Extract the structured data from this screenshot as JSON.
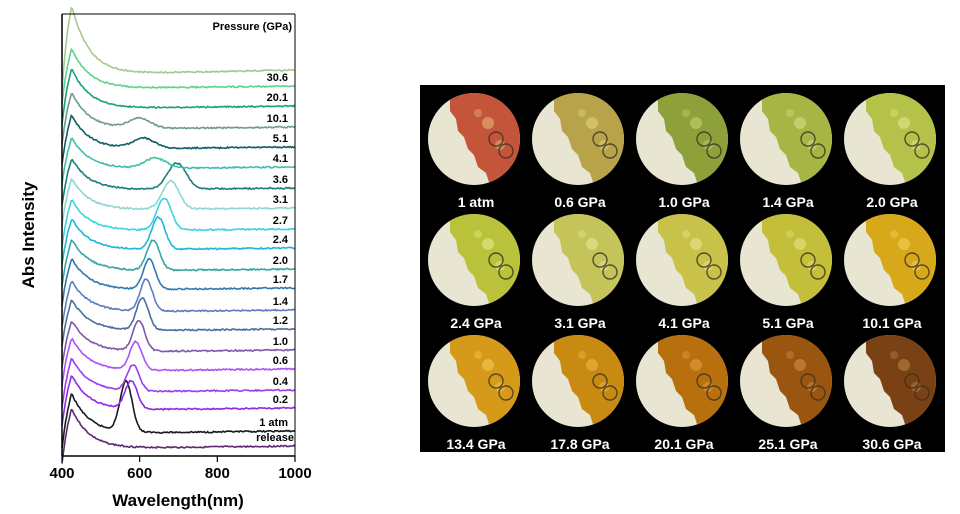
{
  "chart_data": {
    "type": "line",
    "xlabel": "Wavelength(nm)",
    "ylabel": "Abs Intensity",
    "legend_title": "Pressure (GPa)",
    "xlim": [
      400,
      1000
    ],
    "xticks": [
      400,
      600,
      800,
      1000
    ],
    "grid": false,
    "series": [
      {
        "name": "release",
        "color": "#5b2a6e",
        "baseline": 446,
        "peak": 0,
        "amp": 0,
        "width": 0,
        "edge": 70
      },
      {
        "name": "1 atm",
        "color": "#1a1a1a",
        "baseline": 431,
        "peak": 565,
        "amp": 50,
        "width": 22,
        "edge": 70
      },
      {
        "name": "0.2",
        "color": "#8c2be2",
        "baseline": 408,
        "peak": 578,
        "amp": 28,
        "width": 22,
        "edge": 62
      },
      {
        "name": "0.4",
        "color": "#9b3cf0",
        "baseline": 390,
        "peak": 583,
        "amp": 26,
        "width": 22,
        "edge": 60
      },
      {
        "name": "0.6",
        "color": "#a855f7",
        "baseline": 369,
        "peak": 590,
        "amp": 28,
        "width": 22,
        "edge": 58
      },
      {
        "name": "1.0",
        "color": "#7b59a8",
        "baseline": 350,
        "peak": 598,
        "amp": 30,
        "width": 22,
        "edge": 55
      },
      {
        "name": "1.2",
        "color": "#4a6f9c",
        "baseline": 329,
        "peak": 607,
        "amp": 32,
        "width": 22,
        "edge": 55
      },
      {
        "name": "1.4",
        "color": "#5b7ec0",
        "baseline": 310,
        "peak": 617,
        "amp": 32,
        "width": 22,
        "edge": 55
      },
      {
        "name": "1.7",
        "color": "#2f79b0",
        "baseline": 288,
        "peak": 625,
        "amp": 30,
        "width": 22,
        "edge": 55
      },
      {
        "name": "2.0",
        "color": "#35a6a6",
        "baseline": 269,
        "peak": 635,
        "amp": 30,
        "width": 23,
        "edge": 55
      },
      {
        "name": "2.4",
        "color": "#1fb7d9",
        "baseline": 248,
        "peak": 648,
        "amp": 32,
        "width": 24,
        "edge": 55
      },
      {
        "name": "2.7",
        "color": "#3ad3e0",
        "baseline": 229,
        "peak": 663,
        "amp": 32,
        "width": 26,
        "edge": 55
      },
      {
        "name": "3.1",
        "color": "#8fd6d0",
        "baseline": 208,
        "peak": 680,
        "amp": 28,
        "width": 30,
        "edge": 55
      },
      {
        "name": "3.6",
        "color": "#1a7f7a",
        "baseline": 188,
        "peak": 696,
        "amp": 26,
        "width": 34,
        "edge": 55
      },
      {
        "name": "4.1",
        "color": "#3fbfa8",
        "baseline": 167,
        "peak": 640,
        "amp": 10,
        "width": 40,
        "edge": 55
      },
      {
        "name": "5.1",
        "color": "#0e5f66",
        "baseline": 147,
        "peak": 610,
        "amp": 10,
        "width": 40,
        "edge": 60
      },
      {
        "name": "10.1",
        "color": "#6f9c8a",
        "baseline": 127,
        "peak": 600,
        "amp": 10,
        "width": 40,
        "edge": 65
      },
      {
        "name": "20.1",
        "color": "#1aa079",
        "baseline": 106,
        "peak": 0,
        "amp": 0,
        "width": 0,
        "edge": 70
      },
      {
        "name": "30.6",
        "color": "#5fd38e",
        "baseline": 86,
        "peak": 0,
        "amp": 0,
        "width": 0,
        "edge": 70
      },
      {
        "name": "",
        "color": "#a8c98e",
        "baseline": 70,
        "peak": 0,
        "amp": 0,
        "width": 0,
        "edge": 120
      }
    ]
  },
  "photos": [
    {
      "label": "1 atm",
      "base": "#c5553a",
      "spot": "#e0a86a"
    },
    {
      "label": "0.6 GPa",
      "base": "#b8a34a",
      "spot": "#d9cc7a"
    },
    {
      "label": "1.0 GPa",
      "base": "#8ea03a",
      "spot": "#c0c66a"
    },
    {
      "label": "1.4 GPa",
      "base": "#a7b545",
      "spot": "#d0d87a"
    },
    {
      "label": "2.0 GPa",
      "base": "#b4c24a",
      "spot": "#dbe07e"
    },
    {
      "label": "2.4 GPa",
      "base": "#b9c23a",
      "spot": "#dfe37a"
    },
    {
      "label": "3.1 GPa",
      "base": "#c4c45a",
      "spot": "#e4e28a"
    },
    {
      "label": "4.1 GPa",
      "base": "#c8c24a",
      "spot": "#e6e085"
    },
    {
      "label": "5.1 GPa",
      "base": "#c3bf3a",
      "spot": "#e2dc78"
    },
    {
      "label": "10.1 GPa",
      "base": "#d7a81a",
      "spot": "#f0cc55"
    },
    {
      "label": "13.4 GPa",
      "base": "#d59a1a",
      "spot": "#f0c050"
    },
    {
      "label": "17.8 GPa",
      "base": "#c98a12",
      "spot": "#e8b040"
    },
    {
      "label": "20.1 GPa",
      "base": "#b8700e",
      "spot": "#dc9838"
    },
    {
      "label": "25.1 GPa",
      "base": "#9a5610",
      "spot": "#c8863a"
    },
    {
      "label": "30.6 GPa",
      "base": "#7a4214",
      "spot": "#b07840"
    }
  ]
}
